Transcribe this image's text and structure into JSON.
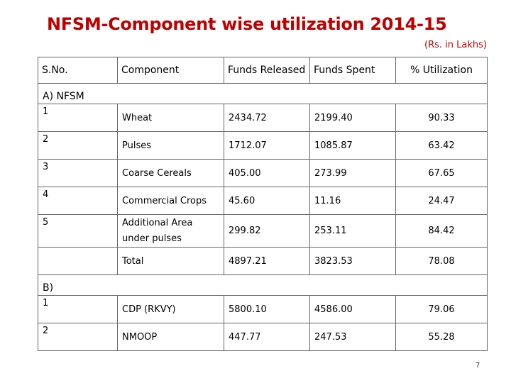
{
  "title": "NFSM-Component wise utilization 2014-15",
  "unit_note": "(Rs. in Lakhs)",
  "headers": {
    "sno": "S.No.",
    "component": "Component",
    "released": "Funds Released",
    "spent": "Funds Spent",
    "utilization": "% Utilization"
  },
  "section_a": {
    "label": "A) NFSM",
    "rows": [
      {
        "sno": "1",
        "component": "Wheat",
        "released": "2434.72",
        "spent": "2199.40",
        "utilization": "90.33"
      },
      {
        "sno": "2",
        "component": "Pulses",
        "released": "1712.07",
        "spent": "1085.87",
        "utilization": "63.42"
      },
      {
        "sno": "3",
        "component": "Coarse Cereals",
        "released": "405.00",
        "spent": "273.99",
        "utilization": "67.65"
      },
      {
        "sno": "4",
        "component": "Commercial Crops",
        "released": "45.60",
        "spent": "11.16",
        "utilization": "24.47"
      },
      {
        "sno": "5",
        "component": "Additional Area under pulses",
        "released": "299.82",
        "spent": "253.11",
        "utilization": "84.42"
      },
      {
        "sno": "",
        "component": "Total",
        "released": "4897.21",
        "spent": "3823.53",
        "utilization": "78.08"
      }
    ]
  },
  "section_b": {
    "label": "B)",
    "rows": [
      {
        "sno": "1",
        "component": "CDP (RKVY)",
        "released": "5800.10",
        "spent": "4586.00",
        "utilization": "79.06"
      },
      {
        "sno": "2",
        "component": "NMOOP",
        "released": "447.77",
        "spent": "247.53",
        "utilization": "55.28"
      }
    ]
  },
  "page_number": "7",
  "colors": {
    "title": "#c00000",
    "border": "#666666"
  }
}
